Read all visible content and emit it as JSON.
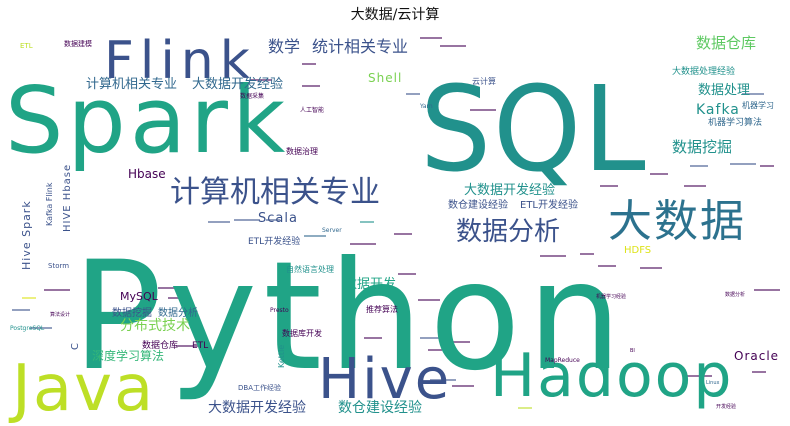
{
  "chart_data": {
    "type": "wordcloud",
    "title": "大数据/云计算",
    "colors": {
      "dark_purple": "#440154",
      "indigo": "#3b528b",
      "slate_blue": "#31688e",
      "blue_teal": "#2c728e",
      "teal": "#21918c",
      "sea_green": "#20a486",
      "green": "#35b779",
      "light_green": "#5ec962",
      "lime": "#7ad151",
      "yellow_green": "#bddf26",
      "yellow": "#dde318"
    },
    "words": [
      {
        "text": "Python",
        "weight": 100,
        "color": "sea_green"
      },
      {
        "text": "SQL",
        "weight": 74,
        "color": "teal"
      },
      {
        "text": "Spark",
        "weight": 62,
        "color": "sea_green"
      },
      {
        "text": "Java",
        "weight": 46,
        "color": "yellow_green"
      },
      {
        "text": "Hadoop",
        "weight": 42,
        "color": "sea_green"
      },
      {
        "text": "Flink",
        "weight": 38,
        "color": "indigo"
      },
      {
        "text": "Hive",
        "weight": 36,
        "color": "indigo"
      },
      {
        "text": "大数据",
        "weight": 34,
        "color": "blue_teal"
      },
      {
        "text": "计算机相关专业",
        "weight": 26,
        "color": "indigo"
      },
      {
        "text": "数据分析",
        "weight": 24,
        "color": "indigo"
      },
      {
        "text": "数学",
        "weight": 12,
        "color": "indigo"
      },
      {
        "text": "统计相关专业",
        "weight": 12,
        "color": "indigo"
      },
      {
        "text": "计算机相关专业",
        "weight": 10,
        "color": "slate_blue"
      },
      {
        "text": "大数据开发经验",
        "weight": 10,
        "color": "slate_blue"
      },
      {
        "text": "大数据开发经验",
        "weight": 11,
        "color": "indigo"
      },
      {
        "text": "大数据开发经验",
        "weight": 11,
        "color": "teal"
      },
      {
        "text": "数仓建设经验",
        "weight": 11,
        "color": "teal"
      },
      {
        "text": "数据仓库",
        "weight": 12,
        "color": "light_green"
      },
      {
        "text": "数据处理",
        "weight": 10,
        "color": "teal"
      },
      {
        "text": "数据挖掘",
        "weight": 12,
        "color": "teal"
      },
      {
        "text": "Kafka",
        "weight": 11,
        "color": "teal"
      },
      {
        "text": "机器学习算法",
        "weight": 7,
        "color": "slate_blue"
      },
      {
        "text": "大数据处理经验",
        "weight": 7,
        "color": "teal"
      },
      {
        "text": "机器学习",
        "weight": 6,
        "color": "slate_blue"
      },
      {
        "text": "Shell",
        "weight": 10,
        "color": "lime"
      },
      {
        "text": "云计算",
        "weight": 6,
        "color": "indigo"
      },
      {
        "text": "Hbase",
        "weight": 10,
        "color": "dark_purple"
      },
      {
        "text": "Scala",
        "weight": 11,
        "color": "indigo"
      },
      {
        "text": "数仓建设经验",
        "weight": 8,
        "color": "indigo"
      },
      {
        "text": "ETL开发经验",
        "weight": 7,
        "color": "indigo"
      },
      {
        "text": "ETL开发经验",
        "weight": 7,
        "color": "indigo"
      },
      {
        "text": "数据开发",
        "weight": 10,
        "color": "sea_green"
      },
      {
        "text": "分布式技术",
        "weight": 11,
        "color": "lime"
      },
      {
        "text": "深度学习算法",
        "weight": 10,
        "color": "green"
      },
      {
        "text": "MySQL",
        "weight": 9,
        "color": "dark_purple"
      },
      {
        "text": "数据挖掘",
        "weight": 8,
        "color": "indigo"
      },
      {
        "text": "数据分析",
        "weight": 8,
        "color": "slate_blue"
      },
      {
        "text": "数据仓库",
        "weight": 7,
        "color": "dark_purple"
      },
      {
        "text": "ETL",
        "weight": 7,
        "color": "dark_purple"
      },
      {
        "text": "Oracle",
        "weight": 10,
        "color": "dark_purple"
      },
      {
        "text": "HDFS",
        "weight": 8,
        "color": "yellow"
      },
      {
        "text": "Hive Spark",
        "weight": 9,
        "color": "indigo"
      },
      {
        "text": "HIVE Hbase",
        "weight": 8,
        "color": "indigo"
      },
      {
        "text": "Kafka Flink",
        "weight": 6,
        "color": "indigo"
      },
      {
        "text": "数据治理",
        "weight": 6,
        "color": "dark_purple"
      },
      {
        "text": "自然语言处理",
        "weight": 6,
        "color": "teal"
      },
      {
        "text": "推荐算法",
        "weight": 6,
        "color": "dark_purple"
      },
      {
        "text": "数据库开发",
        "weight": 6,
        "color": "dark_purple"
      },
      {
        "text": "Kettle",
        "weight": 6,
        "color": "teal"
      },
      {
        "text": "DBA工作经验",
        "weight": 5,
        "color": "indigo"
      },
      {
        "text": "MapReduce",
        "weight": 5,
        "color": "dark_purple"
      },
      {
        "text": "Storm",
        "weight": 5,
        "color": "indigo"
      },
      {
        "text": "C",
        "weight": 7,
        "color": "indigo"
      },
      {
        "text": "PostgreSQL",
        "weight": 4,
        "color": "teal"
      },
      {
        "text": "Presto",
        "weight": 4,
        "color": "dark_purple"
      },
      {
        "text": "Yarn",
        "weight": 4,
        "color": "slate_blue"
      },
      {
        "text": "数据建模",
        "weight": 4,
        "color": "dark_purple"
      },
      {
        "text": "ETL",
        "weight": 4,
        "color": "yellow_green"
      },
      {
        "text": "人工智能",
        "weight": 4,
        "color": "dark_purple"
      },
      {
        "text": "数据采集",
        "weight": 4,
        "color": "dark_purple"
      },
      {
        "text": "机器学习经验",
        "weight": 3,
        "color": "dark_purple"
      },
      {
        "text": "算法设计",
        "weight": 3,
        "color": "dark_purple"
      },
      {
        "text": "Server",
        "weight": 4,
        "color": "slate_blue"
      },
      {
        "text": "数据分析",
        "weight": 3,
        "color": "dark_purple"
      },
      {
        "text": "Linux",
        "weight": 3,
        "color": "slate_blue"
      },
      {
        "text": "BI",
        "weight": 3,
        "color": "dark_purple"
      },
      {
        "text": "开发经验",
        "weight": 3,
        "color": "dark_purple"
      }
    ]
  }
}
